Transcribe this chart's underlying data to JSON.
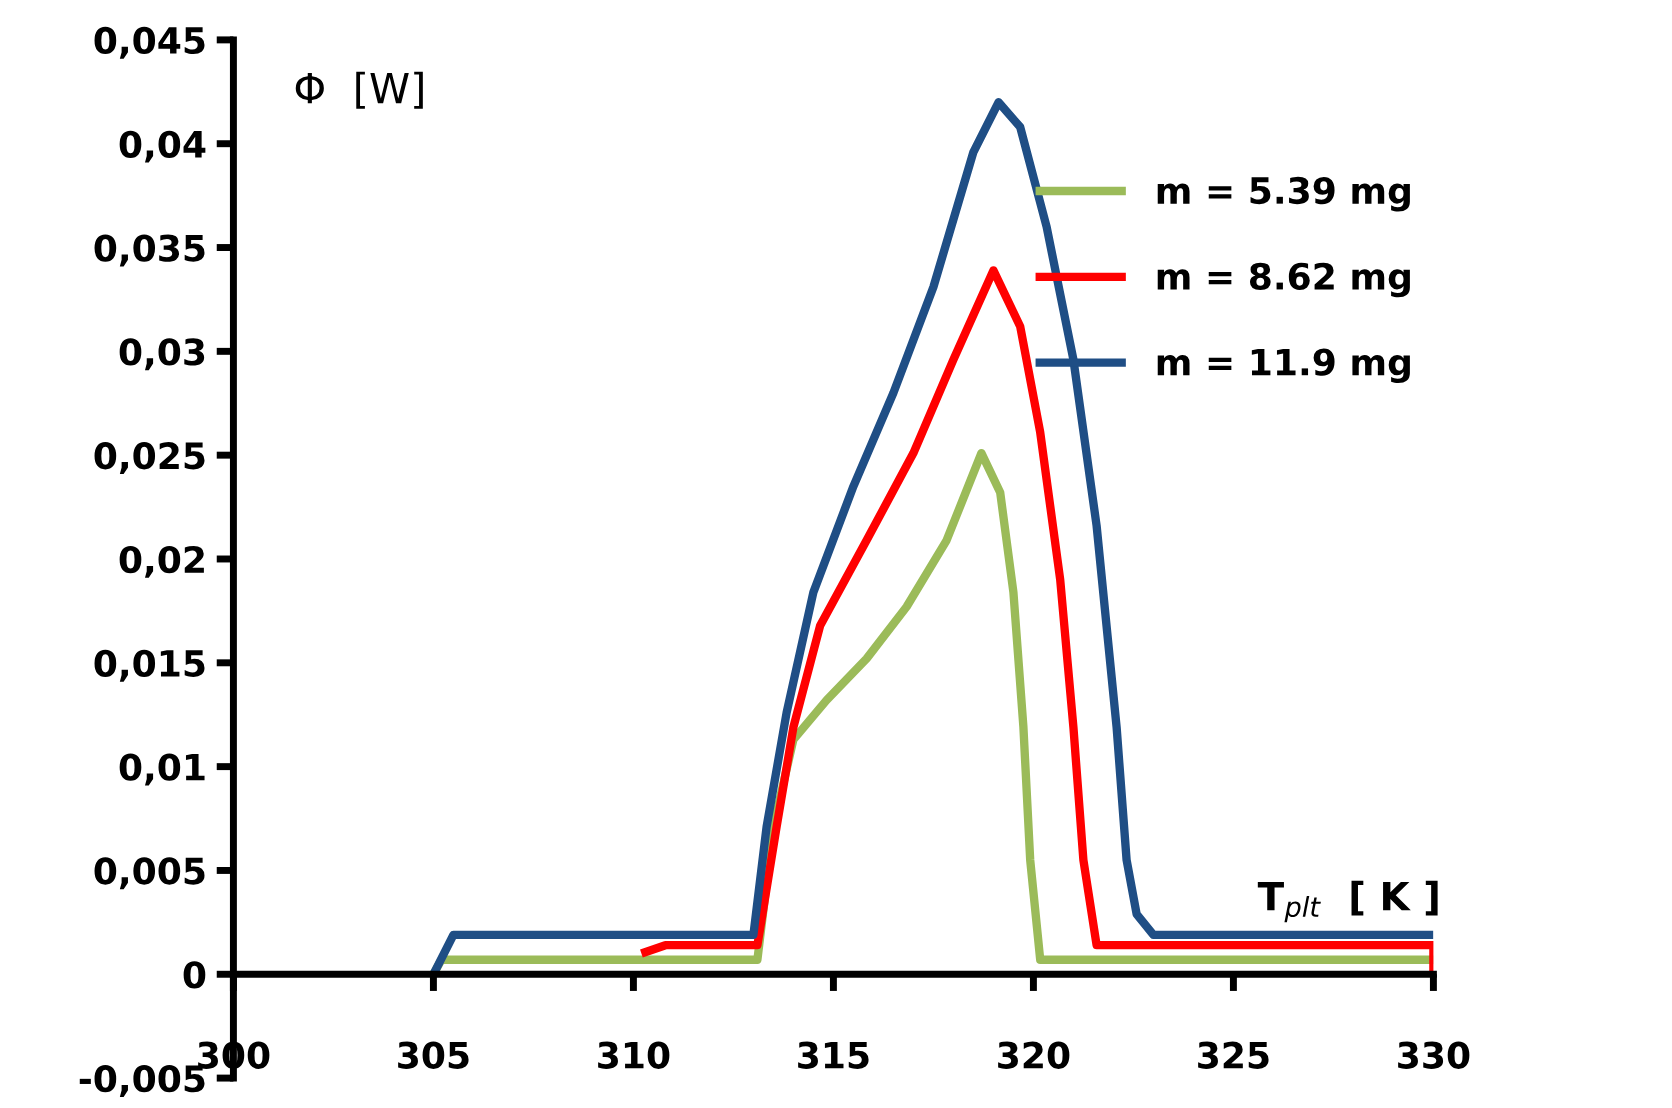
{
  "chart_data": {
    "type": "line",
    "xlabel": "T$_{plt}$  [ K ]",
    "ylabel": "Φ  [W]",
    "xlim": [
      300,
      330
    ],
    "ylim": [
      -0.005,
      0.045
    ],
    "xticks": [
      300,
      305,
      310,
      315,
      320,
      325,
      330
    ],
    "yticks": [
      {
        "value": -0.005,
        "label": "-0,005"
      },
      {
        "value": 0,
        "label": "0"
      },
      {
        "value": 0.005,
        "label": "0,005"
      },
      {
        "value": 0.01,
        "label": "0,01"
      },
      {
        "value": 0.015,
        "label": "0,015"
      },
      {
        "value": 0.02,
        "label": "0,02"
      },
      {
        "value": 0.025,
        "label": "0,025"
      },
      {
        "value": 0.03,
        "label": "0,03"
      },
      {
        "value": 0.035,
        "label": "0,035"
      },
      {
        "value": 0.04,
        "label": "0,04"
      },
      {
        "value": 0.045,
        "label": "0,045"
      }
    ],
    "grid": false,
    "legend": "top right",
    "marker": "none",
    "line_style": "solid",
    "series": [
      {
        "name": "m = 5.39 mg",
        "color": "#9bbb59",
        "x": [
          305,
          305.2,
          313.1,
          313.5,
          314,
          314.83,
          315.83,
          316.83,
          317.83,
          318.7,
          319.17,
          319.5,
          319.75,
          319.92,
          320.17,
          330
        ],
        "values": [
          0,
          0.0007,
          0.0007,
          0.0071,
          0.0113,
          0.0132,
          0.0152,
          0.0177,
          0.0209,
          0.0251,
          0.0232,
          0.0184,
          0.0119,
          0.0055,
          0.0007,
          0.0007
        ]
      },
      {
        "name": "m = 8.62 mg",
        "color": "#ff0000",
        "x": [
          310.2,
          310.8,
          313.1,
          313.58,
          314,
          314.67,
          315.83,
          317,
          318,
          319,
          319.67,
          320.17,
          320.67,
          321,
          321.25,
          321.58,
          330,
          330
        ],
        "values": [
          0.001,
          0.0014,
          0.0014,
          0.0071,
          0.0119,
          0.0168,
          0.0209,
          0.0251,
          0.0296,
          0.0339,
          0.0312,
          0.0261,
          0.019,
          0.0119,
          0.0055,
          0.0014,
          0.0014,
          0
        ]
      },
      {
        "name": "m = 11.9 mg",
        "color": "#1f4e85",
        "x": [
          305,
          305.5,
          313,
          313.33,
          313.83,
          314.5,
          315.5,
          316.5,
          317.5,
          318.5,
          319.13,
          319.67,
          320.33,
          321,
          321.58,
          322.08,
          322.33,
          322.58,
          323,
          330
        ],
        "values": [
          0,
          0.0019,
          0.0019,
          0.0071,
          0.0126,
          0.0184,
          0.0235,
          0.028,
          0.0331,
          0.0396,
          0.042,
          0.0408,
          0.036,
          0.0296,
          0.0216,
          0.0119,
          0.0055,
          0.0029,
          0.0019,
          0.0019
        ]
      }
    ]
  }
}
